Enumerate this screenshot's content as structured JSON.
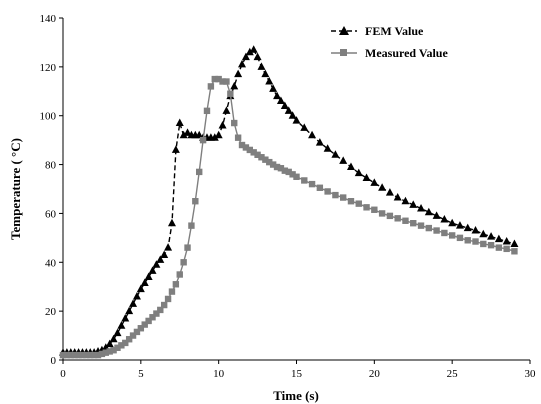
{
  "chart_data": {
    "type": "line",
    "xlabel": "Time (s)",
    "ylabel": "Temperature ( °C)",
    "xlim": [
      0,
      30
    ],
    "ylim": [
      0,
      140
    ],
    "xticks": [
      0,
      5,
      10,
      15,
      20,
      25,
      30
    ],
    "yticks": [
      0,
      20,
      40,
      60,
      80,
      100,
      120,
      140
    ],
    "grid": false,
    "legend_position": "top-right",
    "series": [
      {
        "name": "FEM Value",
        "color": "#000000",
        "line_style": "dashed",
        "marker": "triangle",
        "x": [
          0.0,
          0.25,
          0.5,
          0.75,
          1.0,
          1.25,
          1.5,
          1.75,
          2.0,
          2.25,
          2.5,
          2.75,
          3.0,
          3.25,
          3.5,
          3.75,
          4.0,
          4.25,
          4.5,
          4.75,
          5.0,
          5.25,
          5.5,
          5.75,
          6.0,
          6.25,
          6.5,
          6.75,
          7.0,
          7.25,
          7.5,
          7.75,
          8.0,
          8.25,
          8.5,
          8.75,
          9.0,
          9.25,
          9.5,
          9.75,
          10.0,
          10.25,
          10.5,
          10.75,
          11.0,
          11.25,
          11.5,
          11.75,
          12.0,
          12.25,
          12.5,
          12.75,
          13.0,
          13.25,
          13.5,
          13.75,
          14.0,
          14.25,
          14.5,
          14.75,
          15.0,
          15.5,
          16.0,
          16.5,
          17.0,
          17.5,
          18.0,
          18.5,
          19.0,
          19.5,
          20.0,
          20.5,
          21.0,
          21.5,
          22.0,
          22.5,
          23.0,
          23.5,
          24.0,
          24.5,
          25.0,
          25.5,
          26.0,
          26.5,
          27.0,
          27.5,
          28.0,
          28.5,
          29.0
        ],
        "y": [
          3,
          3,
          3,
          3,
          3,
          3,
          3,
          3,
          3,
          3.5,
          4,
          5,
          6.5,
          8.5,
          11,
          14,
          17,
          20,
          23,
          26,
          29,
          31.5,
          34,
          36.5,
          39,
          41,
          43,
          46,
          56,
          86,
          97,
          92,
          93,
          92,
          92,
          92,
          91,
          91,
          91,
          91,
          92,
          96,
          102,
          108,
          112,
          117,
          121,
          124,
          126,
          127,
          124,
          120,
          117,
          114,
          111,
          108,
          106,
          104,
          102,
          100,
          98,
          95,
          92,
          89,
          86.5,
          84,
          81.5,
          79,
          76.5,
          74.5,
          72.5,
          70.5,
          68.5,
          66.5,
          65,
          63.5,
          62,
          60.5,
          59,
          57.5,
          56,
          55,
          54,
          53,
          51.5,
          50.5,
          49.5,
          48.5,
          47.5
        ]
      },
      {
        "name": "Measured Value",
        "color": "#7f7f7f",
        "line_style": "solid",
        "marker": "square",
        "x": [
          0.0,
          0.25,
          0.5,
          0.75,
          1.0,
          1.25,
          1.5,
          1.75,
          2.0,
          2.25,
          2.5,
          2.75,
          3.0,
          3.25,
          3.5,
          3.75,
          4.0,
          4.25,
          4.5,
          4.75,
          5.0,
          5.25,
          5.5,
          5.75,
          6.0,
          6.25,
          6.5,
          6.75,
          7.0,
          7.25,
          7.5,
          7.75,
          8.0,
          8.25,
          8.5,
          8.75,
          9.0,
          9.25,
          9.5,
          9.75,
          10.0,
          10.25,
          10.5,
          10.75,
          11.0,
          11.25,
          11.5,
          11.75,
          12.0,
          12.25,
          12.5,
          12.75,
          13.0,
          13.25,
          13.5,
          13.75,
          14.0,
          14.25,
          14.5,
          14.75,
          15.0,
          15.5,
          16.0,
          16.5,
          17.0,
          17.5,
          18.0,
          18.5,
          19.0,
          19.5,
          20.0,
          20.5,
          21.0,
          21.5,
          22.0,
          22.5,
          23.0,
          23.5,
          24.0,
          24.5,
          25.0,
          25.5,
          26.0,
          26.5,
          27.0,
          27.5,
          28.0,
          28.5,
          29.0
        ],
        "y": [
          2,
          2,
          2,
          2,
          2,
          2,
          2,
          2,
          2,
          2,
          2.5,
          3,
          3.5,
          4,
          5,
          6,
          7,
          8.5,
          10,
          11.5,
          13,
          14.5,
          16,
          17.5,
          19,
          20.5,
          22.5,
          25,
          28,
          31,
          35,
          40,
          46,
          55,
          65,
          77,
          90,
          102,
          112,
          115,
          115,
          114,
          114,
          109,
          97,
          91,
          88,
          87,
          86,
          85,
          84,
          83,
          82,
          81,
          80,
          79,
          78.5,
          77.5,
          77,
          76,
          75,
          73.5,
          72,
          70.5,
          69,
          67.5,
          66.5,
          65,
          64,
          62.5,
          61.5,
          60,
          59,
          58,
          57,
          56,
          55,
          54,
          53,
          52,
          51,
          50,
          49,
          48.5,
          47.5,
          47,
          46,
          45.5,
          44.5
        ]
      }
    ]
  }
}
